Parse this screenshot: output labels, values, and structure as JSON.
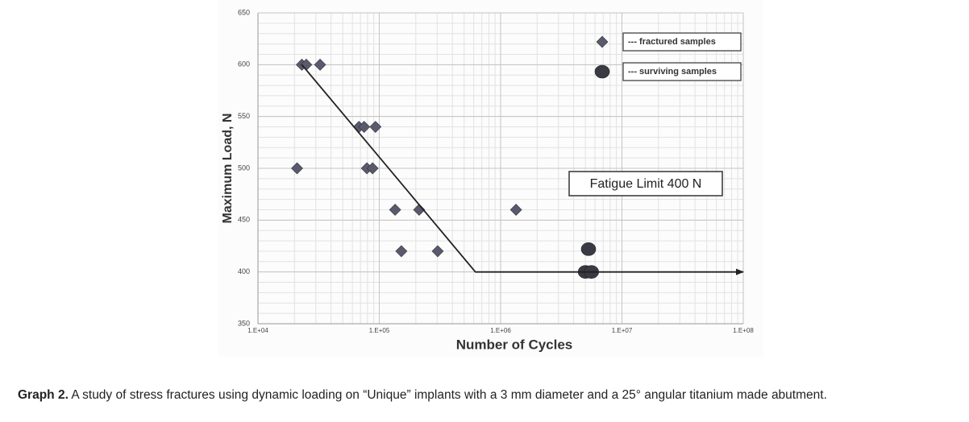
{
  "chart_data": {
    "type": "scatter",
    "log_x": true,
    "grid": true,
    "xlabel": "Number of Cycles",
    "ylabel": "Maximum Load, N",
    "xlim": [
      10000,
      100000000
    ],
    "ylim": [
      350,
      650
    ],
    "xticks": [
      {
        "value": 10000,
        "label": "1.E+04"
      },
      {
        "value": 100000,
        "label": "1.E+05"
      },
      {
        "value": 1000000,
        "label": "1.E+06"
      },
      {
        "value": 10000000,
        "label": "1.E+07"
      },
      {
        "value": 100000000,
        "label": "1.E+08"
      }
    ],
    "yticks": [
      350,
      400,
      450,
      500,
      550,
      600,
      650
    ],
    "annotation": "Fatigue Limit 400 N",
    "series": [
      {
        "name": "--- fractured samples",
        "marker": "diamond",
        "color": "#5a5a6e",
        "x": [
          21000,
          23000,
          25000,
          32500,
          68000,
          75000,
          93000,
          79000,
          88000,
          135000,
          213000,
          152000,
          303000,
          1340000
        ],
        "values": [
          500,
          600,
          600,
          600,
          540,
          540,
          540,
          500,
          500,
          460,
          460,
          420,
          420,
          460
        ]
      },
      {
        "name": "--- surviving samples",
        "marker": "circle",
        "color": "#3a3a44",
        "x": [
          5300000,
          5000000,
          5600000
        ],
        "values": [
          422,
          400,
          400
        ]
      },
      {
        "marker": "line",
        "color": "#222222",
        "x": [
          23000,
          620000,
          100000000
        ],
        "values": [
          600,
          400,
          400
        ]
      }
    ]
  },
  "caption": {
    "label": "Graph 2.",
    "text": "A study of stress fractures using dynamic loading on “Unique” implants with a 3 mm diameter and a 25° angular titanium made abutment."
  }
}
